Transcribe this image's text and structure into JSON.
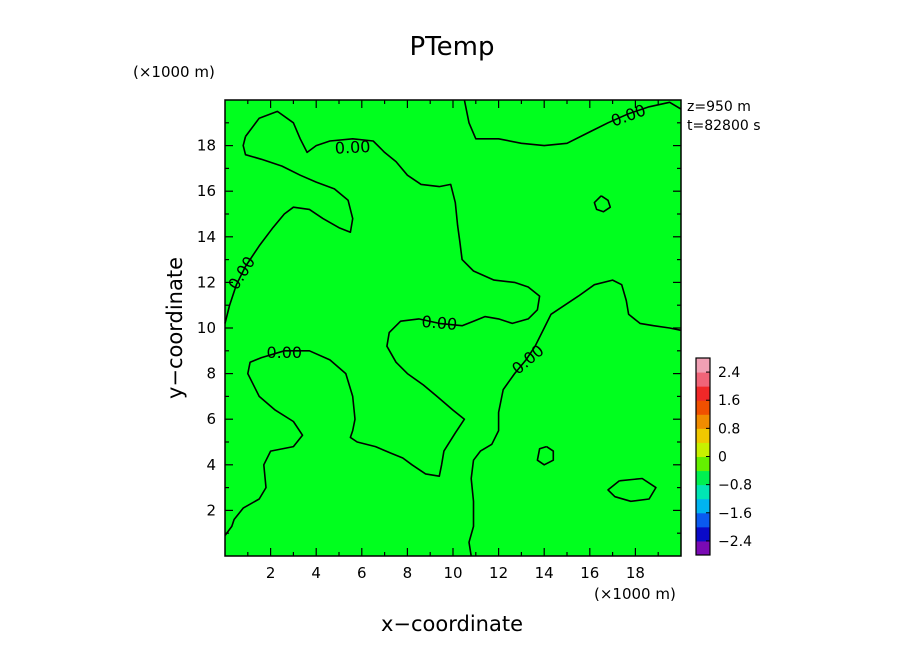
{
  "chart_data": {
    "type": "heatmap",
    "title": "PTemp",
    "xlabel": "x−coordinate",
    "ylabel": "y−coordinate",
    "x_unit": "(×1000 m)",
    "y_unit": "(×1000 m)",
    "xlim": [
      0,
      20
    ],
    "ylim": [
      0,
      20
    ],
    "x_ticks": [
      2,
      4,
      6,
      8,
      10,
      12,
      14,
      16,
      18
    ],
    "y_ticks": [
      2,
      4,
      6,
      8,
      10,
      12,
      14,
      16,
      18
    ],
    "x_tick_labels": [
      "2",
      "4",
      "6",
      "8",
      "10",
      "12",
      "14",
      "16",
      "18"
    ],
    "y_tick_labels": [
      "2",
      "4",
      "6",
      "8",
      "10",
      "12",
      "14",
      "16",
      "18"
    ],
    "info_lines": [
      "z=950 m",
      "t=82800 s"
    ],
    "field_color": "#00ff1e",
    "colorbar": {
      "tick_values": [
        2.4,
        1.6,
        0.8,
        0,
        -0.8,
        -1.6,
        -2.4
      ],
      "tick_labels": [
        "2.4",
        "1.6",
        "0.8",
        "0",
        "−0.8",
        "−1.6",
        "−2.4"
      ],
      "range": [
        -2.8,
        2.8
      ],
      "colors": [
        "#7a0ab4",
        "#0a0ac8",
        "#0a5af0",
        "#00b4f0",
        "#00e6b4",
        "#00f050",
        "#64f000",
        "#c8f000",
        "#f0c800",
        "#f08c00",
        "#f05000",
        "#f02828",
        "#f06478",
        "#f0a0b4"
      ]
    },
    "contour_labels": [
      {
        "text": "0.00",
        "x": 5.6,
        "y": 17.9,
        "angle": -3
      },
      {
        "text": "0.00",
        "x": 17.7,
        "y": 19.3,
        "angle": -20
      },
      {
        "text": "0.00",
        "x": 0.75,
        "y": 12.4,
        "angle": -58
      },
      {
        "text": "0.00",
        "x": 9.4,
        "y": 10.2,
        "angle": 5
      },
      {
        "text": "0.00",
        "x": 2.6,
        "y": 8.9,
        "angle": 0
      },
      {
        "text": "0.00",
        "x": 13.3,
        "y": 8.6,
        "angle": -40
      }
    ],
    "contours": [
      [
        [
          0.9,
          18.4
        ],
        [
          1.5,
          19.2
        ],
        [
          2.3,
          19.5
        ],
        [
          3.0,
          19.0
        ],
        [
          3.3,
          18.3
        ],
        [
          3.6,
          17.7
        ],
        [
          4.0,
          18.0
        ],
        [
          4.6,
          18.2
        ],
        [
          5.6,
          18.3
        ],
        [
          6.5,
          18.2
        ],
        [
          7.0,
          17.7
        ],
        [
          7.5,
          17.3
        ],
        [
          8.0,
          16.7
        ],
        [
          8.6,
          16.3
        ],
        [
          9.4,
          16.2
        ],
        [
          9.9,
          16.3
        ],
        [
          10.1,
          15.5
        ],
        [
          10.2,
          14.5
        ],
        [
          10.3,
          13.8
        ],
        [
          10.4,
          13.0
        ],
        [
          10.9,
          12.5
        ],
        [
          11.8,
          12.1
        ],
        [
          12.7,
          12.0
        ],
        [
          13.3,
          11.8
        ],
        [
          13.8,
          11.4
        ],
        [
          13.7,
          10.8
        ],
        [
          13.3,
          10.4
        ],
        [
          12.6,
          10.2
        ],
        [
          12.0,
          10.4
        ],
        [
          11.4,
          10.5
        ],
        [
          10.9,
          10.3
        ],
        [
          10.4,
          10.1
        ],
        [
          9.4,
          10.2
        ],
        [
          8.5,
          10.4
        ],
        [
          7.7,
          10.3
        ],
        [
          7.2,
          9.8
        ],
        [
          7.1,
          9.2
        ],
        [
          7.5,
          8.5
        ],
        [
          8.0,
          8.0
        ],
        [
          8.7,
          7.5
        ],
        [
          9.3,
          7.0
        ],
        [
          10.0,
          6.4
        ],
        [
          10.5,
          6.0
        ],
        [
          10.1,
          5.4
        ],
        [
          9.6,
          4.6
        ],
        [
          9.5,
          4.0
        ],
        [
          9.4,
          3.5
        ],
        [
          8.8,
          3.6
        ],
        [
          8.2,
          4.0
        ],
        [
          7.8,
          4.3
        ],
        [
          7.3,
          4.5
        ],
        [
          6.6,
          4.8
        ],
        [
          5.8,
          5.0
        ],
        [
          5.5,
          5.2
        ],
        [
          5.6,
          5.5
        ],
        [
          5.7,
          6.0
        ],
        [
          5.6,
          7.0
        ],
        [
          5.3,
          8.0
        ],
        [
          4.6,
          8.6
        ],
        [
          3.7,
          9.0
        ],
        [
          2.6,
          9.0
        ],
        [
          1.6,
          8.7
        ],
        [
          1.1,
          8.5
        ],
        [
          1.0,
          8.0
        ],
        [
          1.5,
          7.0
        ],
        [
          2.2,
          6.4
        ],
        [
          3.0,
          5.9
        ],
        [
          3.4,
          5.3
        ],
        [
          3.0,
          4.8
        ],
        [
          2.0,
          4.6
        ],
        [
          1.7,
          4.0
        ],
        [
          1.8,
          3.0
        ],
        [
          1.5,
          2.5
        ],
        [
          0.8,
          2.1
        ],
        [
          0.4,
          1.6
        ],
        [
          0.3,
          1.3
        ],
        [
          0.0,
          0.9
        ]
      ],
      [
        [
          0.0,
          10.2
        ],
        [
          0.2,
          11.0
        ],
        [
          0.5,
          11.9
        ],
        [
          0.9,
          12.7
        ],
        [
          1.5,
          13.6
        ],
        [
          2.1,
          14.4
        ],
        [
          2.6,
          15.0
        ],
        [
          3.0,
          15.3
        ],
        [
          3.7,
          15.2
        ],
        [
          4.3,
          14.8
        ],
        [
          5.0,
          14.4
        ],
        [
          5.5,
          14.2
        ],
        [
          5.6,
          14.8
        ],
        [
          5.4,
          15.6
        ],
        [
          4.8,
          16.1
        ],
        [
          4.0,
          16.4
        ],
        [
          3.3,
          16.7
        ],
        [
          2.5,
          17.1
        ],
        [
          1.6,
          17.4
        ],
        [
          0.9,
          17.6
        ],
        [
          0.8,
          18.0
        ],
        [
          0.9,
          18.4
        ]
      ],
      [
        [
          10.5,
          20.0
        ],
        [
          10.7,
          19.0
        ],
        [
          11.0,
          18.3
        ],
        [
          12.0,
          18.3
        ],
        [
          13.0,
          18.1
        ],
        [
          14.0,
          18.0
        ],
        [
          15.0,
          18.1
        ],
        [
          16.0,
          18.6
        ],
        [
          16.8,
          19.0
        ],
        [
          17.7,
          19.4
        ],
        [
          18.6,
          19.7
        ],
        [
          19.5,
          19.9
        ],
        [
          20.0,
          19.6
        ]
      ],
      [
        [
          16.5,
          15.8
        ],
        [
          16.8,
          15.6
        ],
        [
          16.9,
          15.3
        ],
        [
          16.6,
          15.1
        ],
        [
          16.3,
          15.2
        ],
        [
          16.2,
          15.5
        ],
        [
          16.5,
          15.8
        ]
      ],
      [
        [
          20.0,
          9.9
        ],
        [
          19.5,
          10.0
        ],
        [
          18.8,
          10.1
        ],
        [
          18.2,
          10.2
        ],
        [
          17.7,
          10.6
        ],
        [
          17.6,
          11.2
        ],
        [
          17.4,
          11.9
        ],
        [
          17.0,
          12.1
        ],
        [
          16.2,
          11.9
        ],
        [
          15.5,
          11.4
        ],
        [
          14.9,
          11.0
        ],
        [
          14.3,
          10.6
        ],
        [
          14.0,
          10.0
        ],
        [
          13.6,
          9.2
        ],
        [
          13.2,
          8.6
        ],
        [
          12.7,
          8.0
        ],
        [
          12.2,
          7.3
        ],
        [
          12.0,
          6.3
        ],
        [
          12.0,
          5.5
        ],
        [
          11.7,
          4.9
        ],
        [
          11.2,
          4.6
        ],
        [
          10.9,
          4.2
        ],
        [
          10.8,
          3.4
        ],
        [
          10.9,
          2.4
        ],
        [
          10.9,
          1.3
        ],
        [
          10.7,
          0.6
        ],
        [
          10.8,
          0.0
        ]
      ],
      [
        [
          14.1,
          4.8
        ],
        [
          14.4,
          4.6
        ],
        [
          14.4,
          4.2
        ],
        [
          14.0,
          4.0
        ],
        [
          13.7,
          4.2
        ],
        [
          13.8,
          4.7
        ],
        [
          14.1,
          4.8
        ]
      ],
      [
        [
          17.3,
          3.3
        ],
        [
          18.3,
          3.4
        ],
        [
          18.9,
          3.0
        ],
        [
          18.6,
          2.5
        ],
        [
          17.8,
          2.4
        ],
        [
          17.1,
          2.6
        ],
        [
          16.8,
          2.9
        ],
        [
          17.3,
          3.3
        ]
      ]
    ]
  }
}
